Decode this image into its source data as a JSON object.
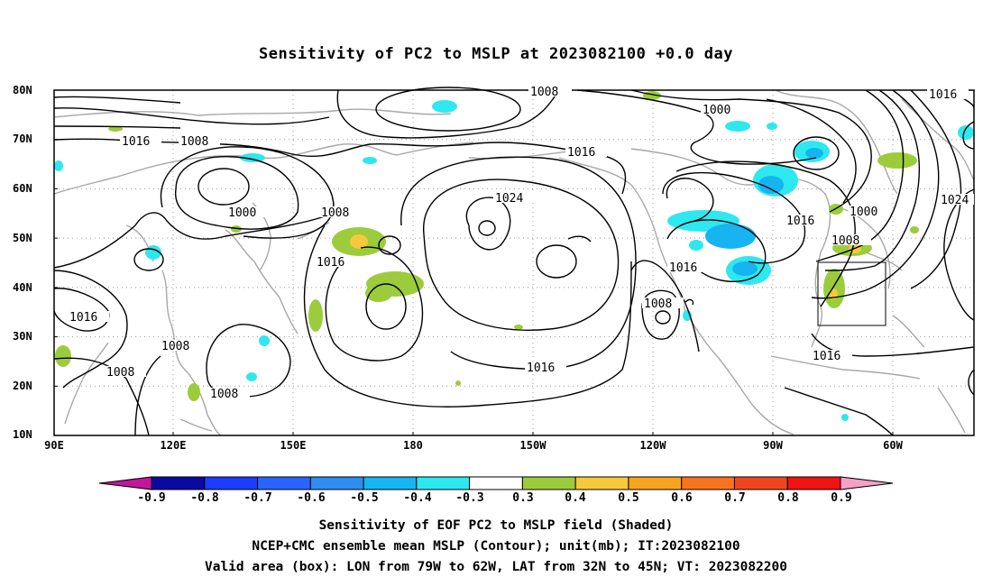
{
  "title": "Sensitivity of PC2 to MSLP at 2023082100 +0.0 day",
  "map": {
    "lat_ticks": [
      "10N",
      "20N",
      "30N",
      "40N",
      "50N",
      "60N",
      "70N",
      "80N"
    ],
    "lon_ticks": [
      "90E",
      "120E",
      "150E",
      "180",
      "150W",
      "120W",
      "90W",
      "60W"
    ],
    "contour_labels": [
      "1008",
      "1016",
      "1008",
      "1000",
      "1008",
      "1016",
      "1016",
      "1008",
      "1008",
      "1008",
      "1016",
      "1024",
      "1016",
      "1008",
      "1016",
      "1000",
      "1016",
      "1000",
      "1008",
      "1016",
      "1024",
      "1016"
    ],
    "valid_box": {
      "lon_min": -79,
      "lon_max": -62,
      "lat_min": 32,
      "lat_max": 45
    }
  },
  "colorbar": {
    "labels": [
      "-0.9",
      "-0.8",
      "-0.7",
      "-0.6",
      "-0.5",
      "-0.4",
      "-0.3",
      "0.3",
      "0.4",
      "0.5",
      "0.6",
      "0.7",
      "0.8",
      "0.9"
    ],
    "colors": [
      "#0a0aa0",
      "#1e3cff",
      "#2a64ff",
      "#2f8cf0",
      "#16b4f0",
      "#2ee8f0",
      "#ffffff",
      "#9ccc3c",
      "#f6c83c",
      "#f7a51e",
      "#f7731e",
      "#f0461e",
      "#f01414"
    ],
    "low_extend_color": "#c0189c",
    "high_extend_color": "#f6a0c8"
  },
  "captions": [
    "Sensitivity of EOF PC2 to MSLP field (Shaded)",
    "NCEP+CMC ensemble mean MSLP (Contour); unit(mb); IT:2023082100",
    "Valid area (box): LON from 79W to 62W, LAT from 32N to 45N; VT: 2023082200"
  ]
}
